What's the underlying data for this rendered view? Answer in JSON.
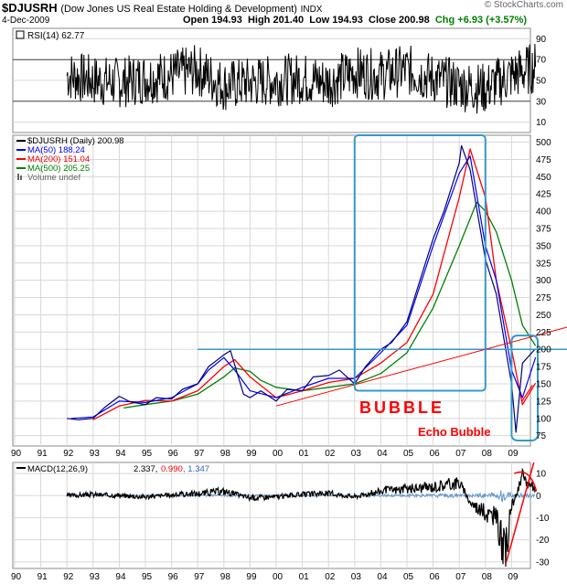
{
  "header": {
    "ticker": "$DJUSRH",
    "full_name": "(Dow Jones US Real Estate Holding & Development)",
    "exchange": "INDX",
    "date": "4-Dec-2009",
    "open": "Open 194.93",
    "high": "High 201.40",
    "low": "Low 194.93",
    "close": "Close 200.98",
    "change": "Chg +6.93 (+3.57%)",
    "copyright": "© StockCharts.com"
  },
  "colors": {
    "price": "#000080",
    "ma50": "#0000ff",
    "ma200": "#ff0000",
    "ma500": "#008000",
    "annotation_box": "#3399cc",
    "annotation_text": "#ff0000",
    "grid": "#d8d8d8"
  },
  "chart_data": [
    {
      "type": "line",
      "panel": "rsi",
      "legend": "RSI(14) 62.77",
      "y_ticks": [
        90,
        70,
        50,
        30,
        10
      ],
      "ylim": [
        0,
        100
      ],
      "reference_lines": [
        70,
        30
      ],
      "last_value": 62.77,
      "x": [
        "1992-01",
        "1993-01",
        "1994-01",
        "1995-01",
        "1996-01",
        "1997-01",
        "1998-01",
        "1999-01",
        "2000-01",
        "2001-01",
        "2002-01",
        "2003-01",
        "2004-01",
        "2005-01",
        "2006-01",
        "2007-01",
        "2008-01",
        "2009-01",
        "2009-12"
      ],
      "values": [
        55,
        50,
        48,
        52,
        55,
        60,
        45,
        48,
        50,
        52,
        48,
        58,
        55,
        60,
        52,
        45,
        42,
        55,
        62.77
      ]
    },
    {
      "type": "line",
      "panel": "price",
      "y_ticks": [
        500,
        475,
        450,
        425,
        400,
        375,
        350,
        325,
        300,
        275,
        250,
        225,
        200,
        175,
        150,
        125,
        100,
        75
      ],
      "ylim": [
        60,
        510
      ],
      "x_ticks": [
        "90",
        "91",
        "92",
        "93",
        "94",
        "95",
        "96",
        "97",
        "98",
        "99",
        "00",
        "01",
        "02",
        "03",
        "04",
        "05",
        "06",
        "07",
        "08",
        "09"
      ],
      "legend": [
        {
          "label": "$DJUSRH (Daily) 200.98",
          "color": "#000000"
        },
        {
          "label": "MA(50) 188.24",
          "color": "#0000ff"
        },
        {
          "label": "MA(200) 151.04",
          "color": "#ff0000"
        },
        {
          "label": "MA(500) 205.25",
          "color": "#008000"
        },
        {
          "label": "Volume undef",
          "color": "#666666"
        }
      ],
      "series": [
        {
          "name": "$DJUSRH (Daily)",
          "x": [
            "1992-01",
            "1992-06",
            "1993-01",
            "1993-06",
            "1994-01",
            "1994-06",
            "1995-01",
            "1995-06",
            "1996-01",
            "1996-06",
            "1997-01",
            "1997-06",
            "1998-01",
            "1998-04",
            "1998-10",
            "1999-01",
            "1999-06",
            "2000-01",
            "2000-06",
            "2001-01",
            "2001-06",
            "2002-01",
            "2002-06",
            "2003-01",
            "2003-06",
            "2004-01",
            "2004-06",
            "2005-01",
            "2005-06",
            "2006-01",
            "2006-06",
            "2007-01",
            "2007-02",
            "2007-06",
            "2008-01",
            "2008-06",
            "2009-01",
            "2009-03",
            "2009-06",
            "2009-12"
          ],
          "values": [
            100,
            98,
            100,
            115,
            132,
            124,
            120,
            130,
            128,
            142,
            150,
            175,
            192,
            198,
            135,
            130,
            140,
            125,
            142,
            140,
            160,
            162,
            170,
            150,
            175,
            200,
            210,
            240,
            290,
            360,
            400,
            470,
            495,
            460,
            330,
            280,
            150,
            80,
            180,
            200.98
          ]
        },
        {
          "name": "MA(50)",
          "x": [
            "1992-03",
            "1993-01",
            "1994-01",
            "1995-01",
            "1996-01",
            "1997-01",
            "1997-06",
            "1998-01",
            "1998-06",
            "1999-01",
            "2000-01",
            "2001-01",
            "2002-01",
            "2003-01",
            "2004-01",
            "2005-01",
            "2006-01",
            "2007-01",
            "2007-06",
            "2008-01",
            "2008-06",
            "2009-01",
            "2009-06",
            "2009-12"
          ],
          "values": [
            100,
            102,
            125,
            123,
            130,
            150,
            170,
            188,
            170,
            140,
            130,
            145,
            158,
            158,
            195,
            235,
            350,
            455,
            480,
            350,
            300,
            170,
            130,
            188.24
          ]
        },
        {
          "name": "MA(200)",
          "x": [
            "1993-01",
            "1994-01",
            "1995-01",
            "1996-01",
            "1997-01",
            "1998-01",
            "1998-06",
            "1999-01",
            "2000-01",
            "2001-01",
            "2002-01",
            "2003-01",
            "2004-01",
            "2005-01",
            "2006-01",
            "2007-01",
            "2007-06",
            "2008-01",
            "2008-06",
            "2009-01",
            "2009-06",
            "2009-12"
          ],
          "values": [
            98,
            118,
            126,
            125,
            140,
            175,
            185,
            160,
            130,
            140,
            152,
            158,
            180,
            210,
            280,
            420,
            490,
            420,
            300,
            200,
            120,
            151.04
          ]
        },
        {
          "name": "MA(500)",
          "x": [
            "1994-03",
            "1995-01",
            "1996-01",
            "1997-01",
            "1998-01",
            "1998-06",
            "1999-01",
            "1999-06",
            "2000-01",
            "2001-01",
            "2002-01",
            "2003-01",
            "2004-01",
            "2005-01",
            "2006-01",
            "2007-01",
            "2007-09",
            "2008-01",
            "2008-06",
            "2009-01",
            "2009-06",
            "2009-12"
          ],
          "values": [
            115,
            120,
            125,
            135,
            160,
            173,
            168,
            155,
            145,
            140,
            145,
            150,
            165,
            195,
            260,
            350,
            413,
            400,
            370,
            300,
            235,
            205.25
          ]
        }
      ],
      "annotations": [
        {
          "text": "BUBBLE",
          "color": "#ff0000"
        },
        {
          "text": "Echo Bubble",
          "color": "#ff0000"
        }
      ]
    },
    {
      "type": "line",
      "panel": "macd",
      "legend": {
        "prefix": "MACD(12,26,9)",
        "macd": "2.337",
        "signal": "0.990",
        "histogram": "1.347"
      },
      "y_ticks": [
        10,
        0,
        -10,
        -20,
        -30
      ],
      "ylim": [
        -33,
        15
      ],
      "x_ticks": [
        "90",
        "91",
        "92",
        "93",
        "94",
        "95",
        "96",
        "97",
        "98",
        "99",
        "00",
        "01",
        "02",
        "03",
        "04",
        "05",
        "06",
        "07",
        "08",
        "09"
      ],
      "x": [
        "1992-01",
        "1993-01",
        "1994-01",
        "1995-01",
        "1996-01",
        "1997-01",
        "1998-01",
        "1999-01",
        "2000-01",
        "2001-01",
        "2002-01",
        "2003-01",
        "2004-01",
        "2005-01",
        "2006-01",
        "2007-01",
        "2007-06",
        "2008-01",
        "2008-06",
        "2008-10",
        "2009-01",
        "2009-06",
        "2009-12"
      ],
      "values": [
        0,
        0.5,
        0,
        -0.5,
        0.3,
        1,
        2,
        -1,
        -0.5,
        0.5,
        1,
        -0.5,
        2,
        3,
        4,
        6,
        -3,
        -8,
        -10,
        -28,
        -5,
        8,
        2.337
      ]
    }
  ]
}
